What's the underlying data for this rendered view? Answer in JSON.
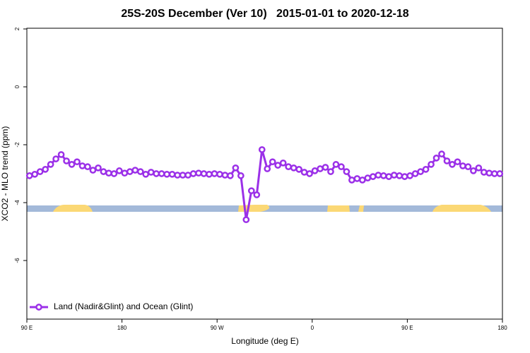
{
  "chart_data": {
    "type": "line",
    "title": "25S-20S December (Ver 10)   2015-01-01 to 2020-12-18",
    "xlabel": "Longitude (deg E)",
    "ylabel": "XCO2 - MLO trend (ppm)",
    "x": [
      92.5,
      97.5,
      102.5,
      107.5,
      112.5,
      117.5,
      122.5,
      127.5,
      132.5,
      137.5,
      142.5,
      147.5,
      152.5,
      157.5,
      162.5,
      167.5,
      172.5,
      177.5,
      182.5,
      187.5,
      192.5,
      197.5,
      202.5,
      207.5,
      212.5,
      217.5,
      222.5,
      227.5,
      232.5,
      237.5,
      242.5,
      247.5,
      252.5,
      257.5,
      262.5,
      267.5,
      272.5,
      277.5,
      282.5,
      287.5,
      292.5,
      297.5,
      302.5,
      307.5,
      312.5,
      317.5,
      322.5,
      327.5,
      332.5,
      337.5,
      342.5,
      347.5,
      352.5,
      357.5,
      362.5,
      367.5,
      372.5,
      377.5,
      382.5,
      387.5,
      392.5,
      397.5,
      402.5,
      407.5,
      412.5,
      417.5,
      422.5,
      427.5,
      432.5,
      437.5,
      442.5,
      447.5,
      452.5,
      457.5,
      462.5,
      467.5,
      472.5,
      477.5,
      482.5,
      487.5,
      492.5,
      497.5,
      502.5,
      507.5,
      512.5,
      517.5,
      522.5,
      527.5,
      532.5,
      537.5
    ],
    "series": [
      {
        "name": "Land (Nadir&Glint) and Ocean (Glint)",
        "color": "#9b30e8",
        "values": [
          -3.07,
          -3.02,
          -2.93,
          -2.85,
          -2.68,
          -2.49,
          -2.34,
          -2.56,
          -2.68,
          -2.59,
          -2.73,
          -2.76,
          -2.88,
          -2.8,
          -2.93,
          -2.98,
          -3.0,
          -2.9,
          -2.98,
          -2.93,
          -2.88,
          -2.93,
          -3.02,
          -2.95,
          -3.0,
          -3.0,
          -3.02,
          -3.02,
          -3.05,
          -3.05,
          -3.05,
          -3.0,
          -2.98,
          -3.0,
          -3.02,
          -3.0,
          -3.02,
          -3.05,
          -3.07,
          -2.8,
          -3.07,
          -4.59,
          -3.59,
          -3.73,
          -2.17,
          -2.83,
          -2.59,
          -2.71,
          -2.63,
          -2.76,
          -2.8,
          -2.85,
          -2.95,
          -3.0,
          -2.9,
          -2.83,
          -2.78,
          -2.93,
          -2.68,
          -2.76,
          -2.93,
          -3.22,
          -3.17,
          -3.22,
          -3.15,
          -3.1,
          -3.05,
          -3.07,
          -3.1,
          -3.05,
          -3.07,
          -3.1,
          -3.07,
          -3.0,
          -2.93,
          -2.85,
          -2.68,
          -2.46,
          -2.32,
          -2.56,
          -2.68,
          -2.59,
          -2.73,
          -2.76,
          -2.9,
          -2.8,
          -2.95,
          -2.98,
          -3.0,
          -3.0
        ]
      }
    ],
    "xlim": [
      90,
      540
    ],
    "xticks": [
      {
        "value": 90,
        "label": "90 E"
      },
      180,
      {
        "value": 270,
        "label": "90 W"
      },
      {
        "value": 360,
        "label": "0"
      },
      {
        "value": 450,
        "label": "90 E"
      },
      {
        "value": 540,
        "label": "180"
      }
    ],
    "ylim": [
      -8,
      2
    ],
    "yticks": [
      -6,
      -4,
      -2,
      0,
      2
    ],
    "legend": "bottom-left"
  }
}
